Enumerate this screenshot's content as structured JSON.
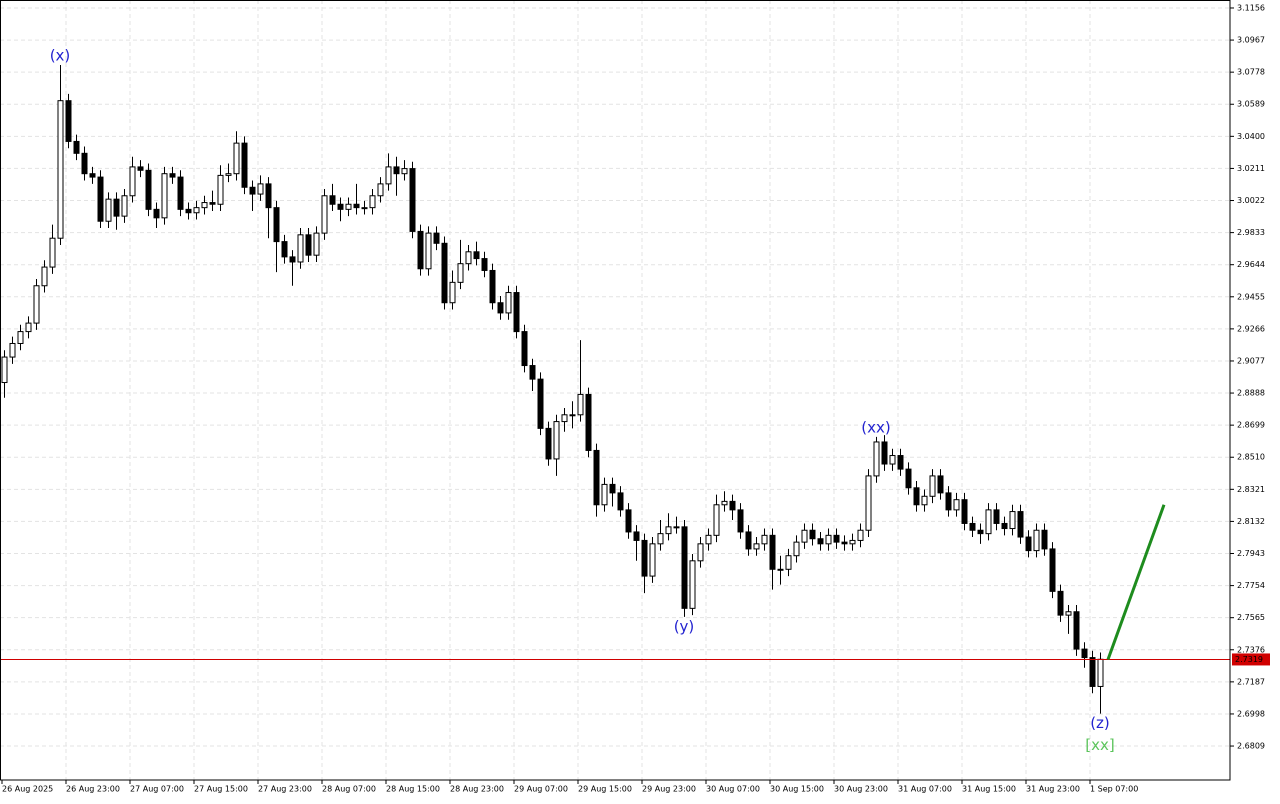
{
  "chart_data": {
    "type": "candlestick",
    "categories": [
      "26 Aug 2025",
      null,
      null,
      null,
      null,
      null,
      null,
      null,
      "26 Aug 23:00",
      null,
      null,
      null,
      null,
      null,
      null,
      null,
      "27 Aug 07:00",
      null,
      null,
      null,
      null,
      null,
      null,
      null,
      "27 Aug 15:00",
      null,
      null,
      null,
      null,
      null,
      null,
      null,
      "27 Aug 23:00",
      null,
      null,
      null,
      null,
      null,
      null,
      null,
      "28 Aug 07:00",
      null,
      null,
      null,
      null,
      null,
      null,
      null,
      "28 Aug 15:00",
      null,
      null,
      null,
      null,
      null,
      null,
      null,
      "28 Aug 23:00",
      null,
      null,
      null,
      null,
      null,
      null,
      null,
      "29 Aug 07:00",
      null,
      null,
      null,
      null,
      null,
      null,
      null,
      "29 Aug 15:00",
      null,
      null,
      null,
      null,
      null,
      null,
      null,
      "29 Aug 23:00",
      null,
      null,
      null,
      null,
      null,
      null,
      null,
      "30 Aug 07:00",
      null,
      null,
      null,
      null,
      null,
      null,
      null,
      "30 Aug 15:00",
      null,
      null,
      null,
      null,
      null,
      null,
      null,
      "30 Aug 23:00",
      null,
      null,
      null,
      null,
      null,
      null,
      null,
      "31 Aug 07:00",
      null,
      null,
      null,
      null,
      null,
      null,
      null,
      "31 Aug 15:00",
      null,
      null,
      null,
      null,
      null,
      null,
      null,
      "31 Aug 23:00",
      null,
      null,
      null,
      null,
      null,
      null,
      null,
      "1 Sep 07:00",
      null
    ],
    "open": [
      2.895,
      2.91,
      2.918,
      2.925,
      2.93,
      2.952,
      2.963,
      2.98,
      3.061,
      3.037,
      3.03,
      3.018,
      3.016,
      2.99,
      3.003,
      2.993,
      3.005,
      3.022,
      3.02,
      2.997,
      2.992,
      3.018,
      3.016,
      2.997,
      2.995,
      2.998,
      3.001,
      3.0,
      3.017,
      3.018,
      3.036,
      3.01,
      3.006,
      3.012,
      2.998,
      2.978,
      2.969,
      2.966,
      2.982,
      2.97,
      2.983,
      3.005,
      3.0,
      2.997,
      3.0,
      2.998,
      2.998,
      3.005,
      3.012,
      3.022,
      3.018,
      3.021,
      2.984,
      2.962,
      2.983,
      2.977,
      2.942,
      2.954,
      2.965,
      2.972,
      2.968,
      2.961,
      2.942,
      2.936,
      2.948,
      2.925,
      2.905,
      2.897,
      2.868,
      2.85,
      2.872,
      2.876,
      2.876,
      2.888,
      2.855,
      2.823,
      2.835,
      2.83,
      2.82,
      2.807,
      2.802,
      2.781,
      2.8,
      2.806,
      2.81,
      2.81,
      2.762,
      2.79,
      2.8,
      2.805,
      2.823,
      2.825,
      2.82,
      2.807,
      2.797,
      2.8,
      2.805,
      2.785,
      2.785,
      2.793,
      2.801,
      2.808,
      2.803,
      2.8,
      2.805,
      2.801,
      2.8,
      2.802,
      2.808,
      2.84,
      2.86,
      2.847,
      2.852,
      2.844,
      2.833,
      2.823,
      2.828,
      2.84,
      2.83,
      2.82,
      2.826,
      2.812,
      2.808,
      2.806,
      2.82,
      2.812,
      2.809,
      2.819,
      2.804,
      2.796,
      2.808,
      2.797,
      2.772,
      2.758,
      2.76,
      2.738,
      2.733,
      2.716
    ],
    "high": [
      2.914,
      2.922,
      2.929,
      2.934,
      2.956,
      2.967,
      2.988,
      3.082,
      3.065,
      3.041,
      3.034,
      3.022,
      3.02,
      3.007,
      3.007,
      3.009,
      3.028,
      3.026,
      3.024,
      3.001,
      3.022,
      3.022,
      3.02,
      3.001,
      3.002,
      3.005,
      3.008,
      3.023,
      3.024,
      3.043,
      3.04,
      3.014,
      3.017,
      3.016,
      3.002,
      2.982,
      2.973,
      2.986,
      2.986,
      2.987,
      3.009,
      3.012,
      3.004,
      3.004,
      3.012,
      3.002,
      3.009,
      3.016,
      3.03,
      3.028,
      3.026,
      3.025,
      2.988,
      2.987,
      2.987,
      2.981,
      2.961,
      2.979,
      2.976,
      2.978,
      2.972,
      2.965,
      2.946,
      2.952,
      2.952,
      2.929,
      2.909,
      2.901,
      2.872,
      2.876,
      2.88,
      2.884,
      2.92,
      2.892,
      2.859,
      2.839,
      2.839,
      2.834,
      2.824,
      2.811,
      2.806,
      2.804,
      2.814,
      2.818,
      2.816,
      2.814,
      2.794,
      2.804,
      2.809,
      2.829,
      2.831,
      2.829,
      2.824,
      2.811,
      2.804,
      2.809,
      2.809,
      2.793,
      2.797,
      2.805,
      2.812,
      2.812,
      2.807,
      2.809,
      2.809,
      2.805,
      2.806,
      2.812,
      2.844,
      2.863,
      2.864,
      2.856,
      2.856,
      2.848,
      2.837,
      2.832,
      2.844,
      2.844,
      2.834,
      2.83,
      2.83,
      2.816,
      2.812,
      2.824,
      2.824,
      2.816,
      2.823,
      2.823,
      2.808,
      2.812,
      2.812,
      2.801,
      2.776,
      2.764,
      2.764,
      2.742,
      2.737,
      2.736
    ],
    "low": [
      2.886,
      2.906,
      2.914,
      2.921,
      2.926,
      2.948,
      2.959,
      2.976,
      3.033,
      3.026,
      3.014,
      3.012,
      2.986,
      2.986,
      2.985,
      2.989,
      3.001,
      3.016,
      2.993,
      2.986,
      2.988,
      3.012,
      2.993,
      2.991,
      2.991,
      2.994,
      2.996,
      2.996,
      3.013,
      3.014,
      3.006,
      2.996,
      3.002,
      2.98,
      2.96,
      2.965,
      2.952,
      2.962,
      2.966,
      2.966,
      2.979,
      2.996,
      2.99,
      2.993,
      2.994,
      2.994,
      2.994,
      3.001,
      3.008,
      3.005,
      3.014,
      2.98,
      2.958,
      2.958,
      2.973,
      2.938,
      2.938,
      2.95,
      2.961,
      2.964,
      2.957,
      2.938,
      2.932,
      2.932,
      2.921,
      2.901,
      2.89,
      2.864,
      2.846,
      2.84,
      2.866,
      2.868,
      2.872,
      2.851,
      2.816,
      2.819,
      2.822,
      2.816,
      2.803,
      2.79,
      2.771,
      2.777,
      2.796,
      2.802,
      2.806,
      2.757,
      2.758,
      2.786,
      2.796,
      2.801,
      2.819,
      2.814,
      2.803,
      2.793,
      2.793,
      2.796,
      2.773,
      2.776,
      2.781,
      2.789,
      2.797,
      2.799,
      2.796,
      2.796,
      2.797,
      2.796,
      2.796,
      2.798,
      2.804,
      2.836,
      2.843,
      2.843,
      2.84,
      2.829,
      2.819,
      2.819,
      2.824,
      2.826,
      2.816,
      2.816,
      2.808,
      2.804,
      2.8,
      2.802,
      2.808,
      2.805,
      2.805,
      2.8,
      2.792,
      2.792,
      2.793,
      2.768,
      2.754,
      2.747,
      2.734,
      2.727,
      2.712,
      2.7
    ],
    "close": [
      2.91,
      2.918,
      2.925,
      2.93,
      2.952,
      2.963,
      2.98,
      3.061,
      3.037,
      3.03,
      3.018,
      3.016,
      2.99,
      3.003,
      2.993,
      3.005,
      3.022,
      3.02,
      2.997,
      2.992,
      3.018,
      3.016,
      2.997,
      2.995,
      2.998,
      3.001,
      3.0,
      3.017,
      3.018,
      3.036,
      3.01,
      3.006,
      3.012,
      2.998,
      2.978,
      2.969,
      2.966,
      2.982,
      2.97,
      2.983,
      3.005,
      3.0,
      2.997,
      3.0,
      2.998,
      2.998,
      3.005,
      3.012,
      3.022,
      3.018,
      3.021,
      2.984,
      2.962,
      2.983,
      2.977,
      2.942,
      2.954,
      2.965,
      2.972,
      2.968,
      2.961,
      2.942,
      2.936,
      2.948,
      2.925,
      2.905,
      2.897,
      2.868,
      2.85,
      2.872,
      2.876,
      2.876,
      2.888,
      2.855,
      2.823,
      2.835,
      2.83,
      2.82,
      2.807,
      2.802,
      2.781,
      2.8,
      2.806,
      2.81,
      2.81,
      2.762,
      2.79,
      2.8,
      2.805,
      2.823,
      2.825,
      2.82,
      2.807,
      2.797,
      2.8,
      2.805,
      2.785,
      2.785,
      2.793,
      2.801,
      2.808,
      2.803,
      2.8,
      2.805,
      2.801,
      2.8,
      2.802,
      2.808,
      2.84,
      2.86,
      2.847,
      2.852,
      2.844,
      2.833,
      2.823,
      2.828,
      2.84,
      2.83,
      2.82,
      2.826,
      2.812,
      2.808,
      2.806,
      2.82,
      2.812,
      2.809,
      2.819,
      2.804,
      2.796,
      2.808,
      2.797,
      2.772,
      2.758,
      2.76,
      2.738,
      2.733,
      2.716,
      2.732
    ],
    "bull_color": "#ffffff",
    "bear_color": "#000000",
    "ylim": [
      2.6609,
      3.1203
    ],
    "yticks": [
      3.1156,
      3.0967,
      3.0778,
      3.0589,
      {
        "value": 3.04,
        "label": "3.0400"
      },
      3.0211,
      3.0022,
      2.9833,
      2.9644,
      2.9455,
      2.9266,
      2.9077,
      2.8888,
      2.8699,
      {
        "value": 2.851,
        "label": "2.8510"
      },
      2.8321,
      2.8132,
      2.7943,
      2.7754,
      2.7565,
      2.7376,
      2.7187,
      2.6998,
      2.6809
    ],
    "grid": true,
    "current_price": 2.7319,
    "current_price_color": "#d00000",
    "annotations": [
      {
        "text": "(x)",
        "index": 7,
        "anchor": "high",
        "color": "#2323d0"
      },
      {
        "text": "(y)",
        "index": 85,
        "anchor": "low",
        "color": "#2323d0"
      },
      {
        "text": "(xx)",
        "index": 109,
        "anchor": "high",
        "color": "#2323d0"
      },
      {
        "text": "(z)",
        "index": 137,
        "anchor": "low",
        "color": "#2323d0"
      },
      {
        "text": "[xx]",
        "index": 137,
        "anchor": "low",
        "color": "#5cc45c"
      }
    ],
    "projection": {
      "x": [
        138,
        145
      ],
      "values": [
        2.7319,
        2.823
      ],
      "color": "#1e8c1e"
    }
  }
}
